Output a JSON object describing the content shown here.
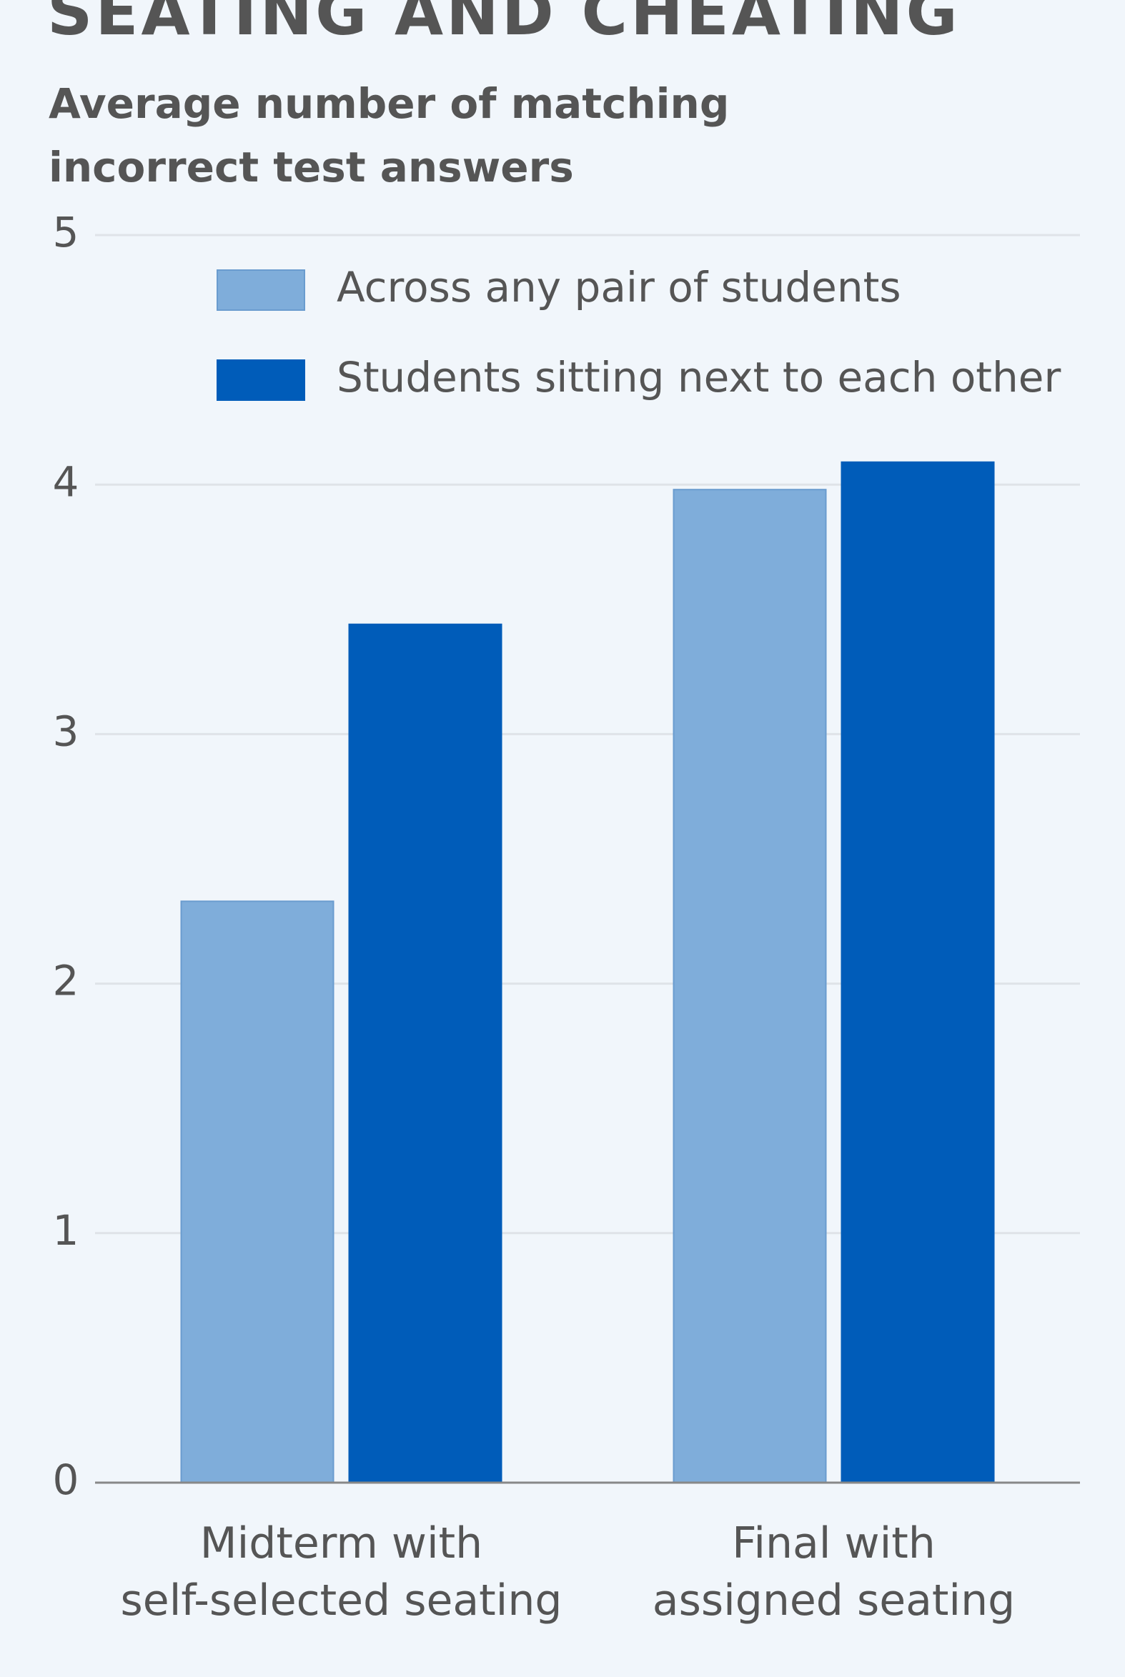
{
  "chart_data": {
    "type": "bar",
    "title": "SEATING AND CHEATING",
    "ylabel": [
      "Average number of matching",
      "incorrect test answers"
    ],
    "categories": [
      [
        "Midterm with",
        "self-selected seating"
      ],
      [
        "Final with",
        "assigned seating"
      ]
    ],
    "series": [
      {
        "name": "Across any pair of students",
        "color": "#7fadda",
        "values": [
          2.33,
          3.98
        ]
      },
      {
        "name": "Students sitting next to each other",
        "color": "#005cb9",
        "values": [
          3.44,
          4.09
        ]
      }
    ],
    "ylim": [
      0,
      5
    ],
    "yticks": [
      0,
      1,
      2,
      3,
      4,
      5
    ],
    "grid": true,
    "legend": "top-left"
  }
}
